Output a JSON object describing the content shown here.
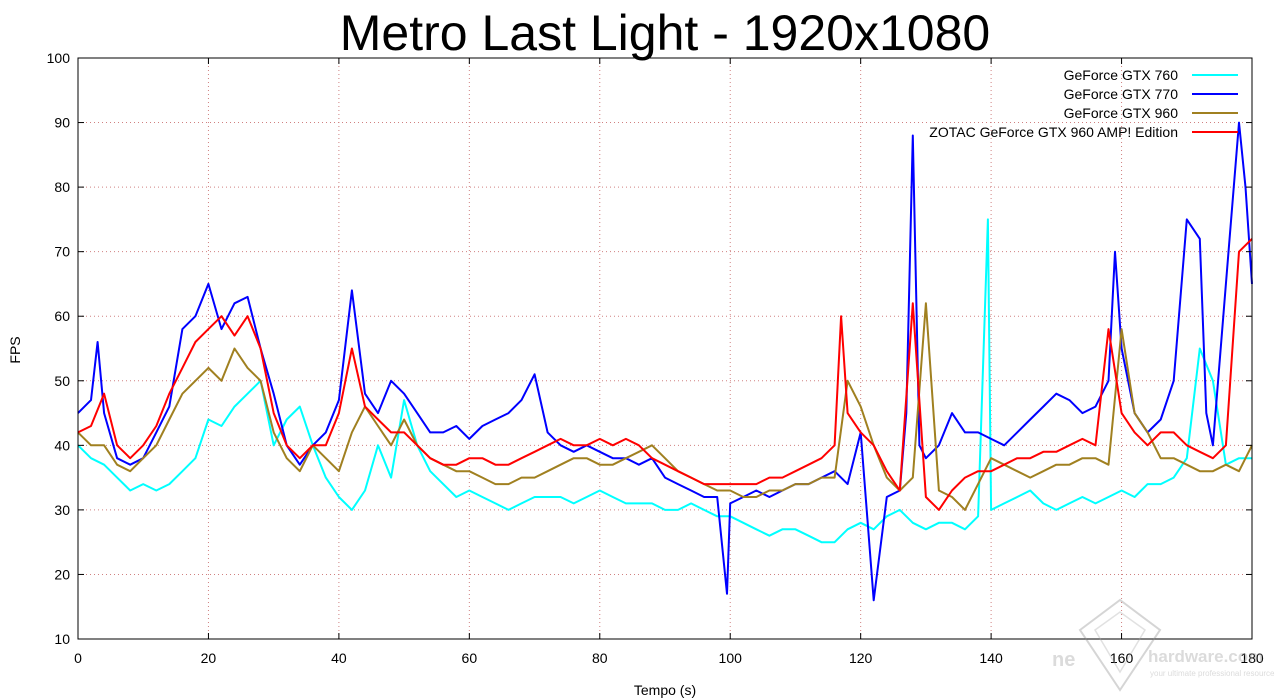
{
  "chart_data": {
    "type": "line",
    "title": "Metro Last Light - 1920x1080",
    "xlabel": "Tempo (s)",
    "ylabel": "FPS",
    "xlim": [
      0,
      180
    ],
    "ylim": [
      10,
      100
    ],
    "xticks": [
      0,
      20,
      40,
      60,
      80,
      100,
      120,
      140,
      160,
      180
    ],
    "yticks": [
      10,
      20,
      30,
      40,
      50,
      60,
      70,
      80,
      90,
      100
    ],
    "grid": true,
    "legend_position": "top-right",
    "series": [
      {
        "name": "GeForce GTX 760",
        "color": "#00ffff",
        "x": [
          0,
          2,
          4,
          6,
          8,
          10,
          12,
          14,
          16,
          18,
          20,
          22,
          24,
          26,
          28,
          30,
          32,
          34,
          36,
          38,
          40,
          42,
          44,
          46,
          48,
          50,
          52,
          54,
          56,
          58,
          60,
          62,
          64,
          66,
          68,
          70,
          72,
          74,
          76,
          78,
          80,
          82,
          84,
          86,
          88,
          90,
          92,
          94,
          96,
          98,
          100,
          102,
          104,
          106,
          108,
          110,
          112,
          114,
          116,
          118,
          120,
          122,
          124,
          126,
          128,
          130,
          132,
          134,
          136,
          138,
          139.5,
          140,
          142,
          144,
          146,
          148,
          150,
          152,
          154,
          156,
          158,
          160,
          162,
          164,
          166,
          168,
          170,
          172,
          174,
          176,
          178,
          180
        ],
        "y": [
          40,
          38,
          37,
          35,
          33,
          34,
          33,
          34,
          36,
          38,
          44,
          43,
          46,
          48,
          50,
          40,
          44,
          46,
          40,
          35,
          32,
          30,
          33,
          40,
          35,
          47,
          40,
          36,
          34,
          32,
          33,
          32,
          31,
          30,
          31,
          32,
          32,
          32,
          31,
          32,
          33,
          32,
          31,
          31,
          31,
          30,
          30,
          31,
          30,
          29,
          29,
          28,
          27,
          26,
          27,
          27,
          26,
          25,
          25,
          27,
          28,
          27,
          29,
          30,
          28,
          27,
          28,
          28,
          27,
          29,
          75,
          30,
          31,
          32,
          33,
          31,
          30,
          31,
          32,
          31,
          32,
          33,
          32,
          34,
          34,
          35,
          38,
          55,
          50,
          37,
          38,
          38
        ]
      },
      {
        "name": "GeForce GTX 770",
        "color": "#0000ff",
        "x": [
          0,
          2,
          3,
          4,
          6,
          8,
          10,
          12,
          14,
          16,
          18,
          20,
          22,
          24,
          26,
          28,
          30,
          32,
          34,
          36,
          38,
          40,
          42,
          44,
          46,
          48,
          50,
          52,
          54,
          56,
          58,
          60,
          62,
          64,
          66,
          68,
          70,
          72,
          74,
          76,
          78,
          80,
          82,
          84,
          86,
          88,
          90,
          92,
          94,
          96,
          98,
          99.5,
          100,
          102,
          104,
          106,
          108,
          110,
          112,
          114,
          116,
          118,
          120,
          122,
          124,
          126,
          127,
          128,
          129,
          130,
          132,
          134,
          136,
          138,
          140,
          142,
          144,
          146,
          148,
          150,
          152,
          154,
          156,
          158,
          159,
          160,
          162,
          164,
          166,
          168,
          170,
          172,
          173,
          174,
          176,
          178,
          179,
          180
        ],
        "y": [
          45,
          47,
          56,
          45,
          38,
          37,
          38,
          42,
          46,
          58,
          60,
          65,
          58,
          62,
          63,
          55,
          48,
          40,
          37,
          40,
          42,
          47,
          64,
          48,
          45,
          50,
          48,
          45,
          42,
          42,
          43,
          41,
          43,
          44,
          45,
          47,
          51,
          42,
          40,
          39,
          40,
          39,
          38,
          38,
          37,
          38,
          35,
          34,
          33,
          32,
          32,
          17,
          31,
          32,
          33,
          32,
          33,
          34,
          34,
          35,
          36,
          34,
          42,
          16,
          32,
          33,
          45,
          88,
          40,
          38,
          40,
          45,
          42,
          42,
          41,
          40,
          42,
          44,
          46,
          48,
          47,
          45,
          46,
          50,
          70,
          55,
          45,
          42,
          44,
          50,
          75,
          72,
          45,
          40,
          65,
          90,
          80,
          65
        ]
      },
      {
        "name": "GeForce GTX 960",
        "color": "#a08020",
        "x": [
          0,
          2,
          4,
          6,
          8,
          10,
          12,
          14,
          16,
          18,
          20,
          22,
          24,
          26,
          28,
          30,
          32,
          34,
          36,
          38,
          40,
          42,
          44,
          46,
          48,
          50,
          52,
          54,
          56,
          58,
          60,
          62,
          64,
          66,
          68,
          70,
          72,
          74,
          76,
          78,
          80,
          82,
          84,
          86,
          88,
          90,
          92,
          94,
          96,
          98,
          100,
          102,
          104,
          106,
          108,
          110,
          112,
          114,
          116,
          118,
          120,
          122,
          124,
          126,
          128,
          130,
          132,
          134,
          136,
          138,
          140,
          142,
          144,
          146,
          148,
          150,
          152,
          154,
          156,
          158,
          160,
          162,
          164,
          166,
          168,
          170,
          172,
          174,
          176,
          178,
          180
        ],
        "y": [
          42,
          40,
          40,
          37,
          36,
          38,
          40,
          44,
          48,
          50,
          52,
          50,
          55,
          52,
          50,
          42,
          38,
          36,
          40,
          38,
          36,
          42,
          46,
          43,
          40,
          44,
          40,
          38,
          37,
          36,
          36,
          35,
          34,
          34,
          35,
          35,
          36,
          37,
          38,
          38,
          37,
          37,
          38,
          39,
          40,
          38,
          36,
          35,
          34,
          33,
          33,
          32,
          32,
          33,
          33,
          34,
          34,
          35,
          35,
          50,
          46,
          40,
          35,
          33,
          35,
          62,
          33,
          32,
          30,
          34,
          38,
          37,
          36,
          35,
          36,
          37,
          37,
          38,
          38,
          37,
          58,
          45,
          42,
          38,
          38,
          37,
          36,
          36,
          37,
          36,
          40
        ]
      },
      {
        "name": "ZOTAC GeForce GTX 960 AMP! Edition",
        "color": "#ff0000",
        "x": [
          0,
          2,
          4,
          6,
          8,
          10,
          12,
          14,
          16,
          18,
          20,
          22,
          24,
          26,
          28,
          30,
          32,
          34,
          36,
          38,
          40,
          42,
          44,
          46,
          48,
          50,
          52,
          54,
          56,
          58,
          60,
          62,
          64,
          66,
          68,
          70,
          72,
          74,
          76,
          78,
          80,
          82,
          84,
          86,
          88,
          90,
          92,
          94,
          96,
          98,
          100,
          102,
          104,
          106,
          108,
          110,
          112,
          114,
          116,
          117,
          118,
          120,
          122,
          124,
          126,
          128,
          130,
          132,
          134,
          136,
          138,
          140,
          142,
          144,
          146,
          148,
          150,
          152,
          154,
          156,
          158,
          160,
          162,
          164,
          166,
          168,
          170,
          172,
          174,
          176,
          178,
          180
        ],
        "y": [
          42,
          43,
          48,
          40,
          38,
          40,
          43,
          48,
          52,
          56,
          58,
          60,
          57,
          60,
          55,
          45,
          40,
          38,
          40,
          40,
          45,
          55,
          46,
          44,
          42,
          42,
          40,
          38,
          37,
          37,
          38,
          38,
          37,
          37,
          38,
          39,
          40,
          41,
          40,
          40,
          41,
          40,
          41,
          40,
          38,
          37,
          36,
          35,
          34,
          34,
          34,
          34,
          34,
          35,
          35,
          36,
          37,
          38,
          40,
          60,
          45,
          42,
          40,
          36,
          33,
          62,
          32,
          30,
          33,
          35,
          36,
          36,
          37,
          38,
          38,
          39,
          39,
          40,
          41,
          40,
          58,
          45,
          42,
          40,
          42,
          42,
          40,
          39,
          38,
          40,
          70,
          72
        ]
      }
    ]
  },
  "watermark": {
    "brand": "hardware.com",
    "prefix": "ne",
    "tagline": "your ultimate professional resource"
  }
}
